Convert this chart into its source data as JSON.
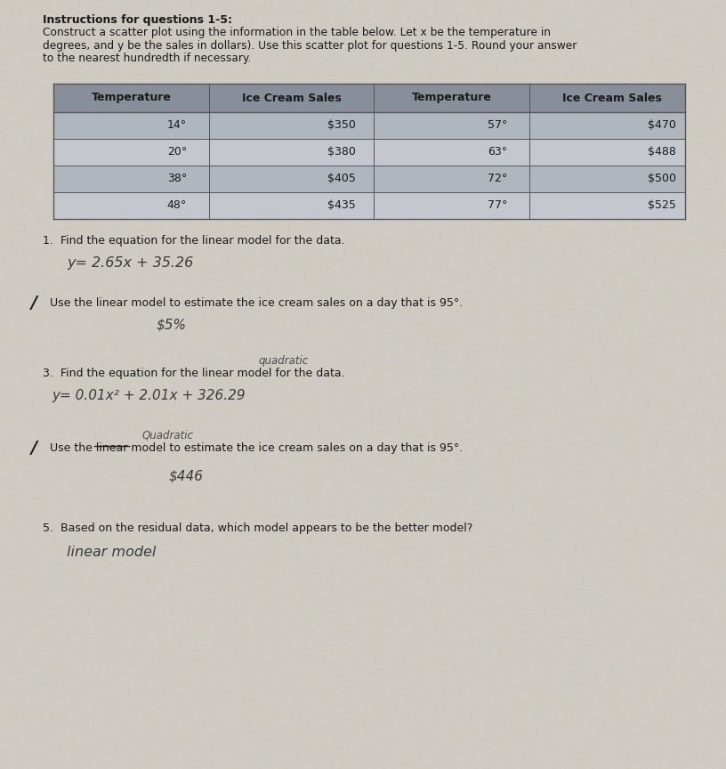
{
  "title_bold": "Instructions for questions 1-5:",
  "title_text1": "Construct a scatter plot using the information in the table below. Let x be the temperature in",
  "title_text2": "degrees, and y be the sales in dollars). Use this scatter plot for questions 1-5. Round your answer",
  "title_text3": "to the nearest hundredth if necessary.",
  "table_headers": [
    "Temperature",
    "Ice Cream Sales",
    "Temperature",
    "Ice Cream Sales"
  ],
  "table_data": [
    [
      "14°",
      "$350",
      "57°",
      "$470"
    ],
    [
      "20°",
      "$380",
      "63°",
      "$488"
    ],
    [
      "38°",
      "$405",
      "72°",
      "$500"
    ],
    [
      "48°",
      "$435",
      "77°",
      "$525"
    ]
  ],
  "q1_label": "1.  Find the equation for the linear model for the data.",
  "q1_answer": "y= 2.65x + 35.26",
  "q2_slash": "/",
  "q2_label": "  Use the linear model to estimate the ice cream sales on a day that is 95°.",
  "q2_answer": "$5%",
  "q3_note": "quadratic",
  "q3_label": "3.  Find the equation for the linear model for the data.",
  "q3_answer": "y= 0.01x² + 2.01x + 326.29",
  "q4_note": "Quadratic",
  "q4_slash": "/",
  "q4_label": "  Use the̶l̶i̶n̶e̶a̶r̶ model to estimate the ice cream sales on a day that is 95°.",
  "q4_answer": "$446",
  "q5_label": "5.  Based on the residual data, which model appears to be the better model?",
  "q5_answer": "linear model",
  "page_bg": "#c8c4bc",
  "paper_bg": "#d4d0c8",
  "header_bg": "#888f9a",
  "row_alt1": "#b0b6be",
  "row_alt2": "#c4c8ce",
  "text_dark": "#1a1a1a",
  "text_header": "#1a1a1a",
  "handwritten": "#3a3a3a",
  "note_color": "#4a4a4a"
}
